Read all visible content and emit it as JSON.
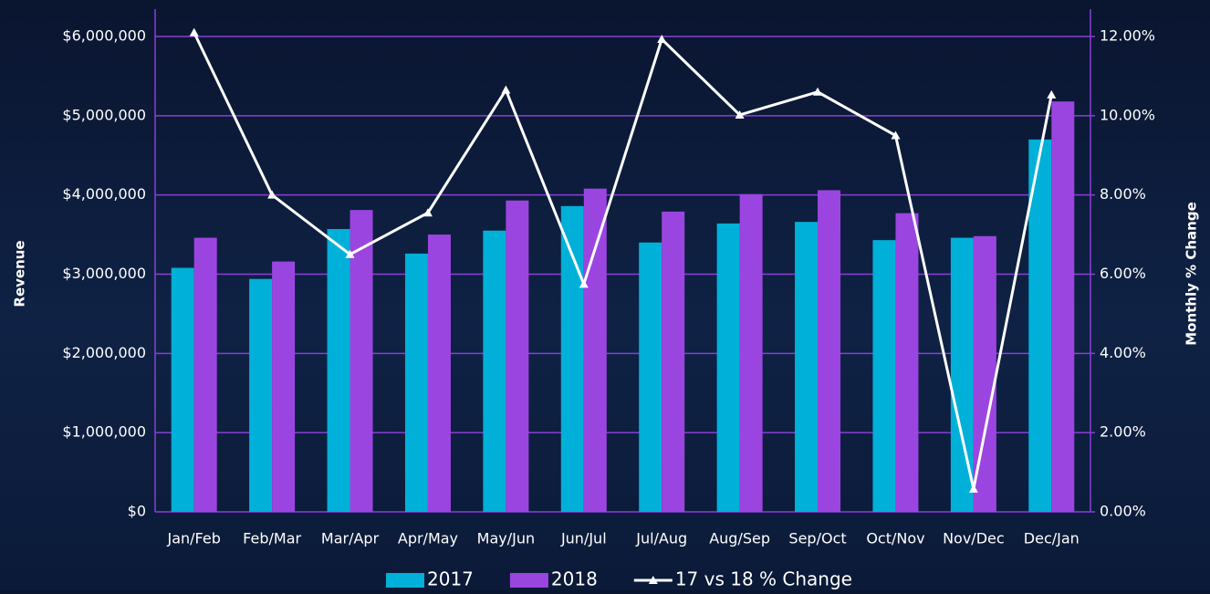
{
  "chart_data": {
    "type": "bar_line",
    "categories": [
      "Jan/Feb",
      "Feb/Mar",
      "Mar/Apr",
      "Apr/May",
      "May/Jun",
      "Jun/Jul",
      "Jul/Aug",
      "Aug/Sep",
      "Sep/Oct",
      "Oct/Nov",
      "Nov/Dec",
      "Dec/Jan"
    ],
    "series": [
      {
        "name": "2017",
        "color": "#00b0d8",
        "type": "bar",
        "values": [
          3080000,
          2940000,
          3570000,
          3260000,
          3550000,
          3860000,
          3400000,
          3640000,
          3660000,
          3430000,
          3460000,
          4700000
        ]
      },
      {
        "name": "2018",
        "color": "#9b45e0",
        "type": "bar",
        "values": [
          3460000,
          3160000,
          3810000,
          3500000,
          3930000,
          4080000,
          3790000,
          4010000,
          4060000,
          3770000,
          3480000,
          5180000
        ]
      },
      {
        "name": "17 vs 18 % Change",
        "color": "#ffffff",
        "type": "line",
        "axis": "y2",
        "values": [
          12.1,
          8.0,
          6.5,
          7.55,
          10.65,
          5.75,
          11.93,
          10.02,
          10.6,
          9.5,
          0.58,
          10.53
        ]
      }
    ],
    "ylabel": "Revenue",
    "y2label": "Monthly % Change",
    "ylim": [
      0,
      6000000
    ],
    "yticks": [
      {
        "value": 0,
        "label": "$0"
      },
      {
        "value": 1000000,
        "label": "$1,000,000"
      },
      {
        "value": 2000000,
        "label": "$2,000,000"
      },
      {
        "value": 3000000,
        "label": "$3,000,000"
      },
      {
        "value": 4000000,
        "label": "$4,000,000"
      },
      {
        "value": 5000000,
        "label": "$5,000,000"
      },
      {
        "value": 6000000,
        "label": "$6,000,000"
      }
    ],
    "y2lim": [
      0,
      12
    ],
    "y2ticks": [
      {
        "value": 0,
        "label": "0.00%"
      },
      {
        "value": 2,
        "label": "2.00%"
      },
      {
        "value": 4,
        "label": "4.00%"
      },
      {
        "value": 6,
        "label": "6.00%"
      },
      {
        "value": 8,
        "label": "8.00%"
      },
      {
        "value": 10,
        "label": "10.00%"
      },
      {
        "value": 12,
        "label": "12.00%"
      }
    ],
    "grid": true,
    "legend": "bottom"
  }
}
